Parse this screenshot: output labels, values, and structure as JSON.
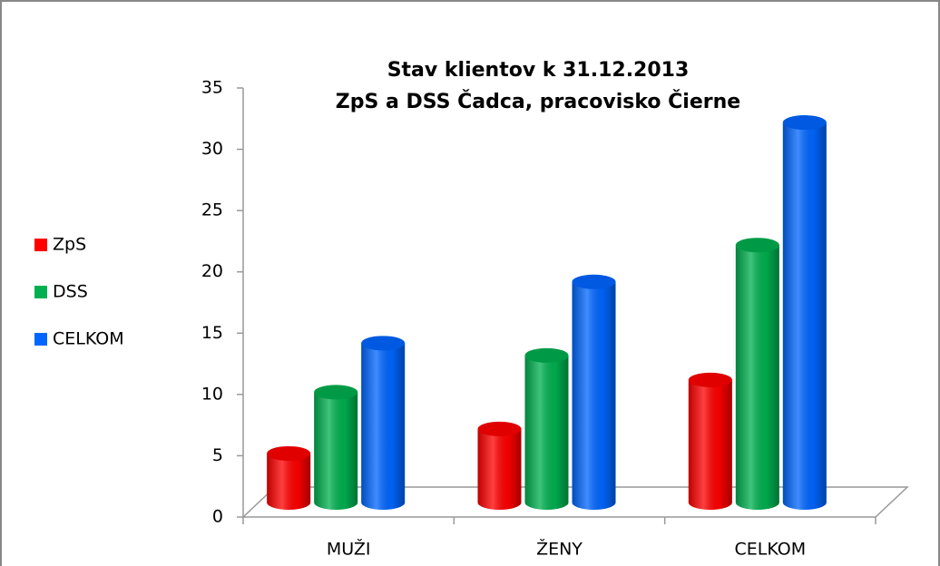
{
  "chart_data": {
    "type": "bar3d",
    "title": "Stav klientov k 31.12.2013",
    "subtitle": "ZpS a DSS Čadca, pracovisko Čierne",
    "categories": [
      "MUŽI",
      "ŽENY",
      "CELKOM"
    ],
    "series": [
      {
        "name": "ZpS",
        "color": "#ff0000",
        "values": [
          4,
          6,
          10
        ]
      },
      {
        "name": "DSS",
        "color": "#00b050",
        "values": [
          9,
          12,
          21
        ]
      },
      {
        "name": "CELKOM",
        "color": "#0066ff",
        "values": [
          13,
          18,
          31
        ]
      }
    ],
    "ylim": [
      0,
      35
    ],
    "yticks": [
      0,
      5,
      10,
      15,
      20,
      25,
      30,
      35
    ],
    "legend": "left"
  }
}
